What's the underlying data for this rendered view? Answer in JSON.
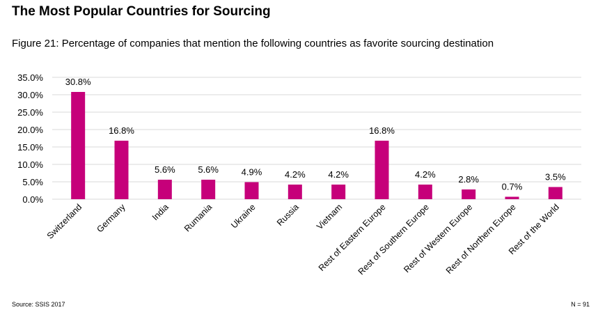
{
  "header": {
    "title": "The Most Popular Countries for Sourcing",
    "subtitle": "Figure 21: Percentage of companies that mention the following countries as favorite sourcing destination"
  },
  "footer": {
    "source": "Source: SSIS 2017",
    "n": "N = 91"
  },
  "colors": {
    "bar": "#C6007A",
    "grid": "#D9D9D9"
  },
  "chart_data": {
    "type": "bar",
    "title": "Figure 21: Percentage of companies that mention the following countries as favorite sourcing destination",
    "xlabel": "",
    "ylabel": "",
    "ylim": [
      0,
      35
    ],
    "yticks": [
      "0.0%",
      "5.0%",
      "10.0%",
      "15.0%",
      "20.0%",
      "25.0%",
      "30.0%",
      "35.0%"
    ],
    "grid": true,
    "categories": [
      "Switzerland",
      "Germany",
      "India",
      "Rumania",
      "Ukraine",
      "Russia",
      "Vietnam",
      "Rest of Eastern Europe",
      "Rest of Southern Europe",
      "Rest of Western Europe",
      "Rest of Northern Europe",
      "Rest of the World"
    ],
    "values": [
      30.8,
      16.8,
      5.6,
      5.6,
      4.9,
      4.2,
      4.2,
      16.8,
      4.2,
      2.8,
      0.7,
      3.5
    ],
    "labels": [
      "30.8%",
      "16.8%",
      "5.6%",
      "5.6%",
      "4.9%",
      "4.2%",
      "4.2%",
      "16.8%",
      "4.2%",
      "2.8%",
      "0.7%",
      "3.5%"
    ]
  }
}
